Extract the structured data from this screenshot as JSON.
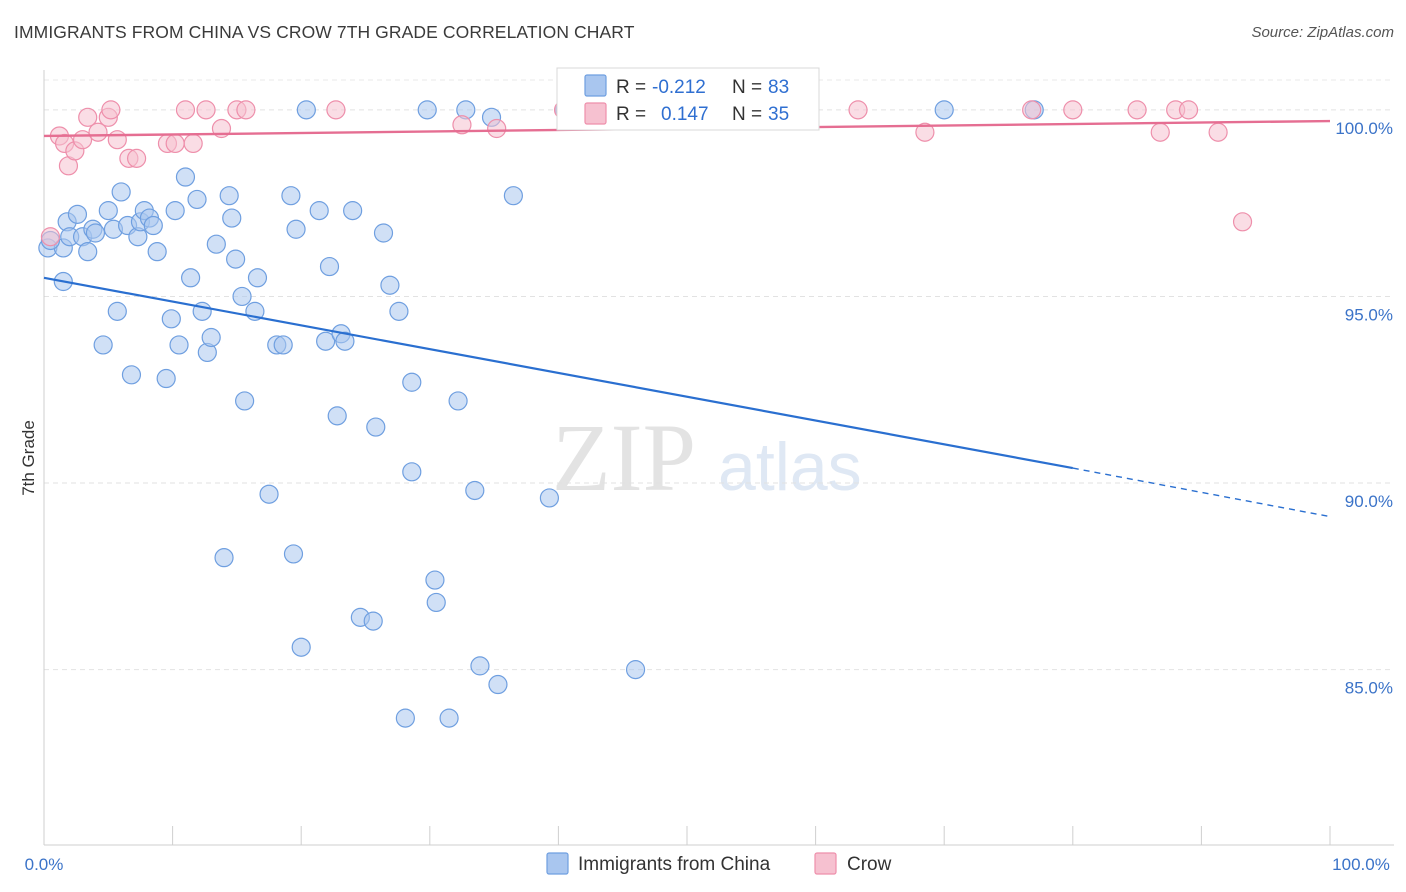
{
  "title": "IMMIGRANTS FROM CHINA VS CROW 7TH GRADE CORRELATION CHART",
  "source": "Source: ZipAtlas.com",
  "watermark": {
    "zip": "ZIP",
    "atlas": "atlas"
  },
  "colors": {
    "blue": "#6f9fe0",
    "blue_fill": "#a9c6ef",
    "blue_line": "#2a6fd0",
    "pink": "#ee8fab",
    "pink_fill": "#f6c1d0",
    "pink_line": "#e56e92"
  },
  "legend": {
    "rows": [
      {
        "r_label": "R =",
        "r_value": "-0.212",
        "n_label": "N =",
        "n_value": "83"
      },
      {
        "r_label": "R =",
        "r_value": "0.147",
        "n_label": "N =",
        "n_value": "35"
      }
    ]
  },
  "chart_data": {
    "type": "scatter",
    "title": "IMMIGRANTS FROM CHINA VS CROW 7TH GRADE CORRELATION CHART",
    "xlabel": "",
    "ylabel": "7th Grade",
    "xlim": [
      0,
      100
    ],
    "ylim": [
      80.3,
      100.8
    ],
    "x_tick_labels": [
      "0.0%",
      "100.0%"
    ],
    "y_ticks": [
      85,
      90,
      95,
      100
    ],
    "y_tick_labels": [
      "85.0%",
      "90.0%",
      "95.0%",
      "100.0%"
    ],
    "series": [
      {
        "name": "Immigrants from China",
        "color": "#6f9fe0",
        "trend": {
          "x0": 0,
          "y0": 95.5,
          "x1": 80,
          "y1": 90.4,
          "dash_to_x": 100,
          "dash_to_y": 89.1
        },
        "points": [
          [
            0.3,
            96.3
          ],
          [
            1.5,
            96.3
          ],
          [
            1.5,
            95.4
          ],
          [
            1.8,
            97.0
          ],
          [
            2.0,
            96.6
          ],
          [
            2.6,
            97.2
          ],
          [
            3.0,
            96.6
          ],
          [
            3.4,
            96.2
          ],
          [
            3.8,
            96.8
          ],
          [
            4.0,
            96.7
          ],
          [
            4.6,
            93.7
          ],
          [
            5.0,
            97.3
          ],
          [
            5.4,
            96.8
          ],
          [
            5.7,
            94.6
          ],
          [
            6.0,
            97.8
          ],
          [
            6.5,
            96.9
          ],
          [
            6.8,
            92.9
          ],
          [
            7.3,
            96.6
          ],
          [
            7.5,
            97.0
          ],
          [
            7.8,
            97.3
          ],
          [
            8.2,
            97.1
          ],
          [
            8.8,
            96.2
          ],
          [
            8.5,
            96.9
          ],
          [
            9.5,
            92.8
          ],
          [
            9.9,
            94.4
          ],
          [
            10.2,
            97.3
          ],
          [
            10.5,
            93.7
          ],
          [
            11.0,
            98.2
          ],
          [
            11.4,
            95.5
          ],
          [
            11.9,
            97.6
          ],
          [
            12.3,
            94.6
          ],
          [
            12.7,
            93.5
          ],
          [
            13.0,
            93.9
          ],
          [
            13.4,
            96.4
          ],
          [
            14.0,
            88.0
          ],
          [
            14.4,
            97.7
          ],
          [
            14.6,
            97.1
          ],
          [
            14.9,
            96.0
          ],
          [
            15.4,
            95.0
          ],
          [
            15.6,
            92.2
          ],
          [
            16.4,
            94.6
          ],
          [
            16.6,
            95.5
          ],
          [
            17.5,
            89.7
          ],
          [
            18.1,
            93.7
          ],
          [
            18.6,
            93.7
          ],
          [
            19.2,
            97.7
          ],
          [
            19.4,
            88.1
          ],
          [
            19.6,
            96.8
          ],
          [
            20.0,
            85.6
          ],
          [
            20.4,
            100.0
          ],
          [
            21.4,
            97.3
          ],
          [
            21.9,
            93.8
          ],
          [
            22.2,
            95.8
          ],
          [
            22.8,
            91.8
          ],
          [
            23.1,
            94.0
          ],
          [
            23.4,
            93.8
          ],
          [
            24.0,
            97.3
          ],
          [
            24.6,
            86.4
          ],
          [
            25.6,
            86.3
          ],
          [
            25.8,
            91.5
          ],
          [
            26.4,
            96.7
          ],
          [
            26.9,
            95.3
          ],
          [
            27.6,
            94.6
          ],
          [
            28.1,
            83.7
          ],
          [
            28.6,
            92.7
          ],
          [
            28.6,
            90.3
          ],
          [
            29.8,
            100.0
          ],
          [
            30.4,
            87.4
          ],
          [
            30.5,
            86.8
          ],
          [
            31.5,
            83.7
          ],
          [
            32.2,
            92.2
          ],
          [
            32.8,
            100.0
          ],
          [
            33.5,
            89.8
          ],
          [
            33.9,
            85.1
          ],
          [
            34.8,
            99.8
          ],
          [
            35.3,
            84.6
          ],
          [
            36.5,
            97.7
          ],
          [
            39.3,
            89.6
          ],
          [
            40.5,
            100.0
          ],
          [
            46.0,
            85.0
          ],
          [
            70.0,
            100.0
          ],
          [
            77.0,
            100.0
          ],
          [
            0.5,
            96.5
          ]
        ]
      },
      {
        "name": "Crow",
        "color": "#ee8fab",
        "trend": {
          "x0": 0,
          "y0": 99.3,
          "x1": 100,
          "y1": 99.7
        },
        "points": [
          [
            0.5,
            96.6
          ],
          [
            1.2,
            99.3
          ],
          [
            1.6,
            99.1
          ],
          [
            1.9,
            98.5
          ],
          [
            2.4,
            98.9
          ],
          [
            3.0,
            99.2
          ],
          [
            3.4,
            99.8
          ],
          [
            4.2,
            99.4
          ],
          [
            5.0,
            99.8
          ],
          [
            5.2,
            100.0
          ],
          [
            5.7,
            99.2
          ],
          [
            6.6,
            98.7
          ],
          [
            7.2,
            98.7
          ],
          [
            9.6,
            99.1
          ],
          [
            10.2,
            99.1
          ],
          [
            11.0,
            100.0
          ],
          [
            11.6,
            99.1
          ],
          [
            12.6,
            100.0
          ],
          [
            13.8,
            99.5
          ],
          [
            15.0,
            100.0
          ],
          [
            15.7,
            100.0
          ],
          [
            22.7,
            100.0
          ],
          [
            32.5,
            99.6
          ],
          [
            35.2,
            99.5
          ],
          [
            40.4,
            100.0
          ],
          [
            63.3,
            100.0
          ],
          [
            68.5,
            99.4
          ],
          [
            76.8,
            100.0
          ],
          [
            80.0,
            100.0
          ],
          [
            85.0,
            100.0
          ],
          [
            86.8,
            99.4
          ],
          [
            88.0,
            100.0
          ],
          [
            89.0,
            100.0
          ],
          [
            91.3,
            99.4
          ],
          [
            93.2,
            97.0
          ]
        ]
      }
    ]
  }
}
